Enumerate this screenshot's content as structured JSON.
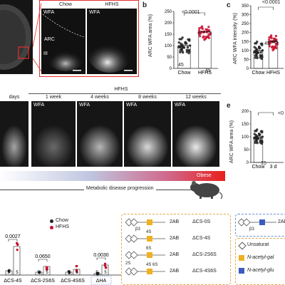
{
  "panel_a": {
    "chow_header": "Chow",
    "hfhs_header": "HFHS",
    "wfa_label": "WFA",
    "arc_label": "ARC",
    "iii_label": "III"
  },
  "panel_b": {
    "letter": "b",
    "pvalue": "<0.0001",
    "ylabel": "ARC WFA area (%)",
    "n_chow": "45",
    "n_hfhs": "45"
  },
  "panel_c": {
    "letter": "c",
    "pvalue": "<0.0001",
    "ylabel": "ARC WFA intensity (%)",
    "n_chow": "45",
    "n_hfhs": "45"
  },
  "panel_d": {
    "group_label": "HFHS",
    "times": [
      "days",
      "1 week",
      "4 weeks",
      "8 weeks",
      "12 weeks"
    ],
    "wfa_label": "WFA",
    "obese_label": "Obese",
    "progression_label": "Metabolic disease progression"
  },
  "panel_e": {
    "letter": "e",
    "pvalue": "<0",
    "ylabel": "ARC WFA area (%)",
    "n_chow": "15",
    "n_3": "3",
    "n_c": "c"
  },
  "panel_f": {
    "legend_chow": "Chow",
    "legend_hfhs": "HFHS",
    "p1": "0.0027",
    "p2": "0.0650",
    "p3": "0.0030",
    "groups": [
      "ΔCS-4S",
      "ΔCS-2S6S",
      "ΔCS-4S6S",
      "ΔHA"
    ]
  },
  "structures": {
    "items": [
      {
        "mods": "",
        "ab": "2AB",
        "name": "ΔCS-0S"
      },
      {
        "mods": "4S",
        "ab": "2AB",
        "name": "ΔCS-4S"
      },
      {
        "mods": "6S",
        "ab": "2AB",
        "name": "ΔCS-2S6S"
      },
      {
        "mods": "4S 6S",
        "ab": "2AB",
        "name": "ΔCS-4S6S"
      }
    ],
    "beta": "β3",
    "beta2": "2S",
    "ha_ab": "2AB",
    "legend": [
      "Unsaturat",
      "N-acetyl-gal",
      "N-acetyl-glu"
    ]
  },
  "chart_data": [
    {
      "type": "scatter",
      "title": "",
      "ylabel": "ARC WFA area (%)",
      "categories": [
        "Chow",
        "HFHS"
      ],
      "pvalue": "<0.0001",
      "ylim": [
        0,
        250
      ],
      "ticks": [
        0,
        50,
        100,
        150,
        200,
        250
      ],
      "series": [
        {
          "name": "Chow",
          "values": [
            100
          ]
        },
        {
          "name": "HFHS",
          "values": [
            160
          ]
        }
      ]
    },
    {
      "type": "scatter",
      "title": "",
      "ylabel": "ARC WFA intensity (%)",
      "categories": [
        "Chow",
        "HFHS"
      ],
      "pvalue": "<0.0001",
      "ylim": [
        0,
        350
      ],
      "ticks": [
        0,
        50,
        100,
        150,
        200,
        250,
        300,
        350
      ],
      "series": [
        {
          "name": "Chow",
          "values": [
            100
          ]
        },
        {
          "name": "HFHS",
          "values": [
            150
          ]
        }
      ]
    },
    {
      "type": "scatter",
      "title": "",
      "ylabel": "ARC WFA area (%)",
      "categories": [
        "Chow",
        "3 d"
      ],
      "ylim": [
        0,
        200
      ],
      "ticks": [
        0,
        50,
        100,
        150,
        200
      ],
      "series": [
        {
          "name": "Chow",
          "values": [
            100
          ]
        }
      ]
    }
  ]
}
